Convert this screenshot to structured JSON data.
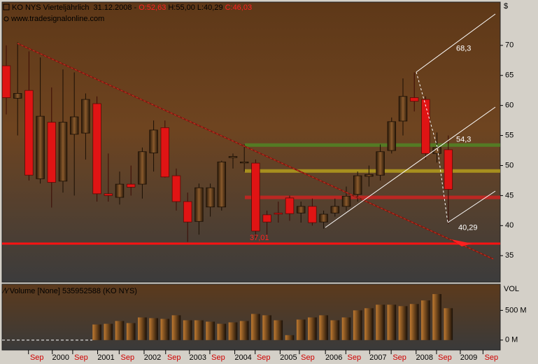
{
  "chart_data": [
    {
      "type": "candlestick",
      "title": "KO NYS Vierteljährlich",
      "date": "31.12.2008",
      "open_label": "O:52,63",
      "high_label": "H:55,00",
      "low_label": "L:40,29",
      "close_label": "C:46,03",
      "source": "www.tradesignalonline.com",
      "unit": "$",
      "open": [
        66.6,
        61.2,
        62.5,
        47.8,
        57.2,
        47.4,
        55.2,
        55.4,
        60.3,
        45.3,
        44.7,
        46.9,
        46.9,
        52.1,
        56.3,
        48.3,
        44,
        40.7,
        43.1,
        43.1,
        51.4,
        50.5,
        50.4,
        41.8,
        42.1,
        44.6,
        42.1,
        43.2,
        40.6,
        42.1,
        43.2,
        45.2,
        48.2,
        48.4,
        52.5,
        57.4,
        61.3,
        61,
        52,
        52.63
      ],
      "high": [
        70,
        70.5,
        69,
        68,
        63,
        66,
        65.5,
        62,
        61.5,
        52,
        49,
        50,
        53,
        57.5,
        57.5,
        49.5,
        45.5,
        47,
        47,
        50.8,
        52,
        53.5,
        51,
        42.5,
        44,
        45,
        44,
        44.5,
        42.5,
        44.5,
        46.5,
        49,
        50,
        53.5,
        58,
        64.5,
        65.5,
        61.5,
        55.5,
        55
      ],
      "low": [
        58.5,
        55,
        47.5,
        47,
        43,
        45.5,
        45,
        51,
        44,
        44,
        43.5,
        45,
        44.5,
        49,
        48,
        42.5,
        37.3,
        38.5,
        41.5,
        42.5,
        49.5,
        49,
        38,
        38.5,
        40.5,
        40.8,
        40.5,
        40,
        39.5,
        41.5,
        42.5,
        44,
        46.5,
        47.5,
        52,
        55,
        59,
        51,
        50.5,
        40.29
      ],
      "close": [
        61.3,
        62,
        48.4,
        58.2,
        47.2,
        57.2,
        58.1,
        61,
        45.3,
        45,
        46.9,
        46.4,
        52.3,
        55.9,
        48.1,
        44,
        40.6,
        46.3,
        46.3,
        50.6,
        51.5,
        50.6,
        39.1,
        40.6,
        41.9,
        42,
        43.2,
        40.5,
        41.9,
        43.2,
        44.9,
        48.3,
        48.5,
        52.3,
        57.3,
        61.5,
        60.7,
        52,
        53,
        46.03
      ],
      "up_color": "#5a3818",
      "down_color": "#e01414",
      "xlim": [
        -0.37,
        43.58
      ],
      "xticks": [
        {
          "value": 2.7,
          "label": "Sep"
        },
        {
          "value": 4.8,
          "label": "2000"
        },
        {
          "value": 6.6,
          "label": "Sep"
        },
        {
          "value": 8.8,
          "label": "2001"
        },
        {
          "value": 10.7,
          "label": "Sep"
        },
        {
          "value": 12.9,
          "label": "2002"
        },
        {
          "value": 14.8,
          "label": "Sep"
        },
        {
          "value": 16.9,
          "label": "2003"
        },
        {
          "value": 18.7,
          "label": "Sep"
        },
        {
          "value": 20.9,
          "label": "2004"
        },
        {
          "value": 22.7,
          "label": "Sep"
        },
        {
          "value": 24.9,
          "label": "2005"
        },
        {
          "value": 26.6,
          "label": "Sep"
        },
        {
          "value": 28.9,
          "label": "2006"
        },
        {
          "value": 30.7,
          "label": "Sep"
        },
        {
          "value": 32.8,
          "label": "2007"
        },
        {
          "value": 34.7,
          "label": "Sep"
        },
        {
          "value": 36.9,
          "label": "2008"
        },
        {
          "value": 38.7,
          "label": "Sep"
        },
        {
          "value": 40.8,
          "label": "2009"
        },
        {
          "value": 42.8,
          "label": "Sep"
        }
      ],
      "ylim": [
        30.6,
        77.2
      ],
      "yticks": [
        35,
        40,
        45,
        50,
        55,
        60,
        65,
        70
      ],
      "levels": [
        {
          "value": 53.4,
          "color": "#4f8a24"
        },
        {
          "value": 49.1,
          "color": "#b9a21c"
        },
        {
          "value": 44.7,
          "color": "#d42020"
        },
        {
          "value": 37.01,
          "color": "#ff1212"
        }
      ],
      "annotations": [
        {
          "value": 68.3,
          "label": "68,3"
        },
        {
          "value": 54.3,
          "label": "54,3"
        },
        {
          "value": 40.29,
          "label": "40,29"
        },
        {
          "value": 37.01,
          "label": "37,01"
        }
      ]
    },
    {
      "type": "bar",
      "title": "Volume [None] 535952588 (KO NYS)",
      "axis_title": "VOL",
      "values": [
        null,
        null,
        null,
        null,
        null,
        null,
        null,
        null,
        262,
        274,
        321,
        286,
        381,
        369,
        357,
        417,
        333,
        333,
        310,
        274,
        298,
        321,
        440,
        417,
        333,
        83,
        345,
        381,
        417,
        333,
        381,
        500,
        536,
        595,
        595,
        571,
        607,
        667,
        774,
        536
      ],
      "xlim": [
        -0.37,
        43.58
      ],
      "ylim": [
        -167,
        940
      ],
      "yticks": [
        {
          "value": 0,
          "label": "0 M"
        },
        {
          "value": 500,
          "label": "500 M"
        }
      ]
    }
  ]
}
